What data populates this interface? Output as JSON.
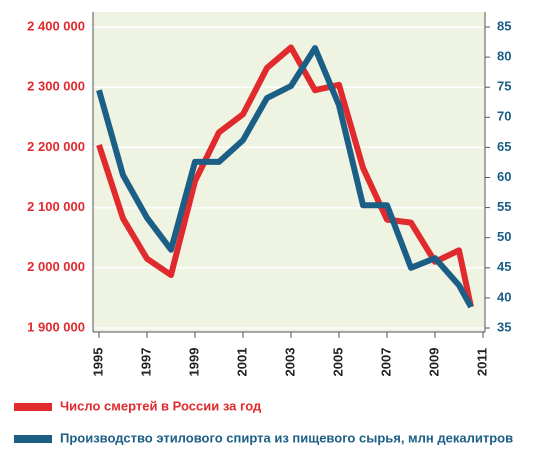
{
  "chart_data": {
    "type": "line",
    "x": [
      1995,
      1996,
      1997,
      1998,
      1999,
      2000,
      2001,
      2002,
      2003,
      2004,
      2005,
      2006,
      2007,
      2008,
      2009,
      2010,
      2010.5
    ],
    "xlim": [
      1995,
      2011
    ],
    "xticks": [
      1995,
      1997,
      1999,
      2001,
      2003,
      2005,
      2007,
      2009,
      2011
    ],
    "ylim": [
      1900000,
      2400000
    ],
    "yticks": [
      {
        "value": 1900000,
        "label": "1 900 000"
      },
      {
        "value": 2000000,
        "label": "2 000 000"
      },
      {
        "value": 2100000,
        "label": "2 100 000"
      },
      {
        "value": 2200000,
        "label": "2 200 000"
      },
      {
        "value": 2300000,
        "label": "2 300 000"
      },
      {
        "value": 2400000,
        "label": "2 400 000"
      }
    ],
    "y2lim": [
      35,
      85
    ],
    "y2ticks": [
      35,
      40,
      45,
      50,
      55,
      60,
      65,
      70,
      75,
      80,
      85
    ],
    "grid": true,
    "series": [
      {
        "name": "Число смертей в России за год",
        "color": "#e12a2e",
        "values": [
          2204000,
          2082000,
          2015000,
          1988000,
          2144000,
          2225000,
          2255000,
          2332000,
          2366000,
          2295000,
          2304000,
          2166000,
          2080000,
          2075000,
          2010000,
          2029000,
          1935000
        ]
      },
      {
        "name": "Производство этилового спирта из пищевого сырья, млн декалитров",
        "color": "#1b5e86",
        "axis": "y2",
        "values": [
          74.5,
          60.4,
          53.3,
          48,
          62.6,
          62.6,
          66.2,
          73.2,
          75.2,
          81.5,
          72,
          55.4,
          55.4,
          45,
          46.6,
          42.1,
          38.5
        ]
      }
    ]
  }
}
